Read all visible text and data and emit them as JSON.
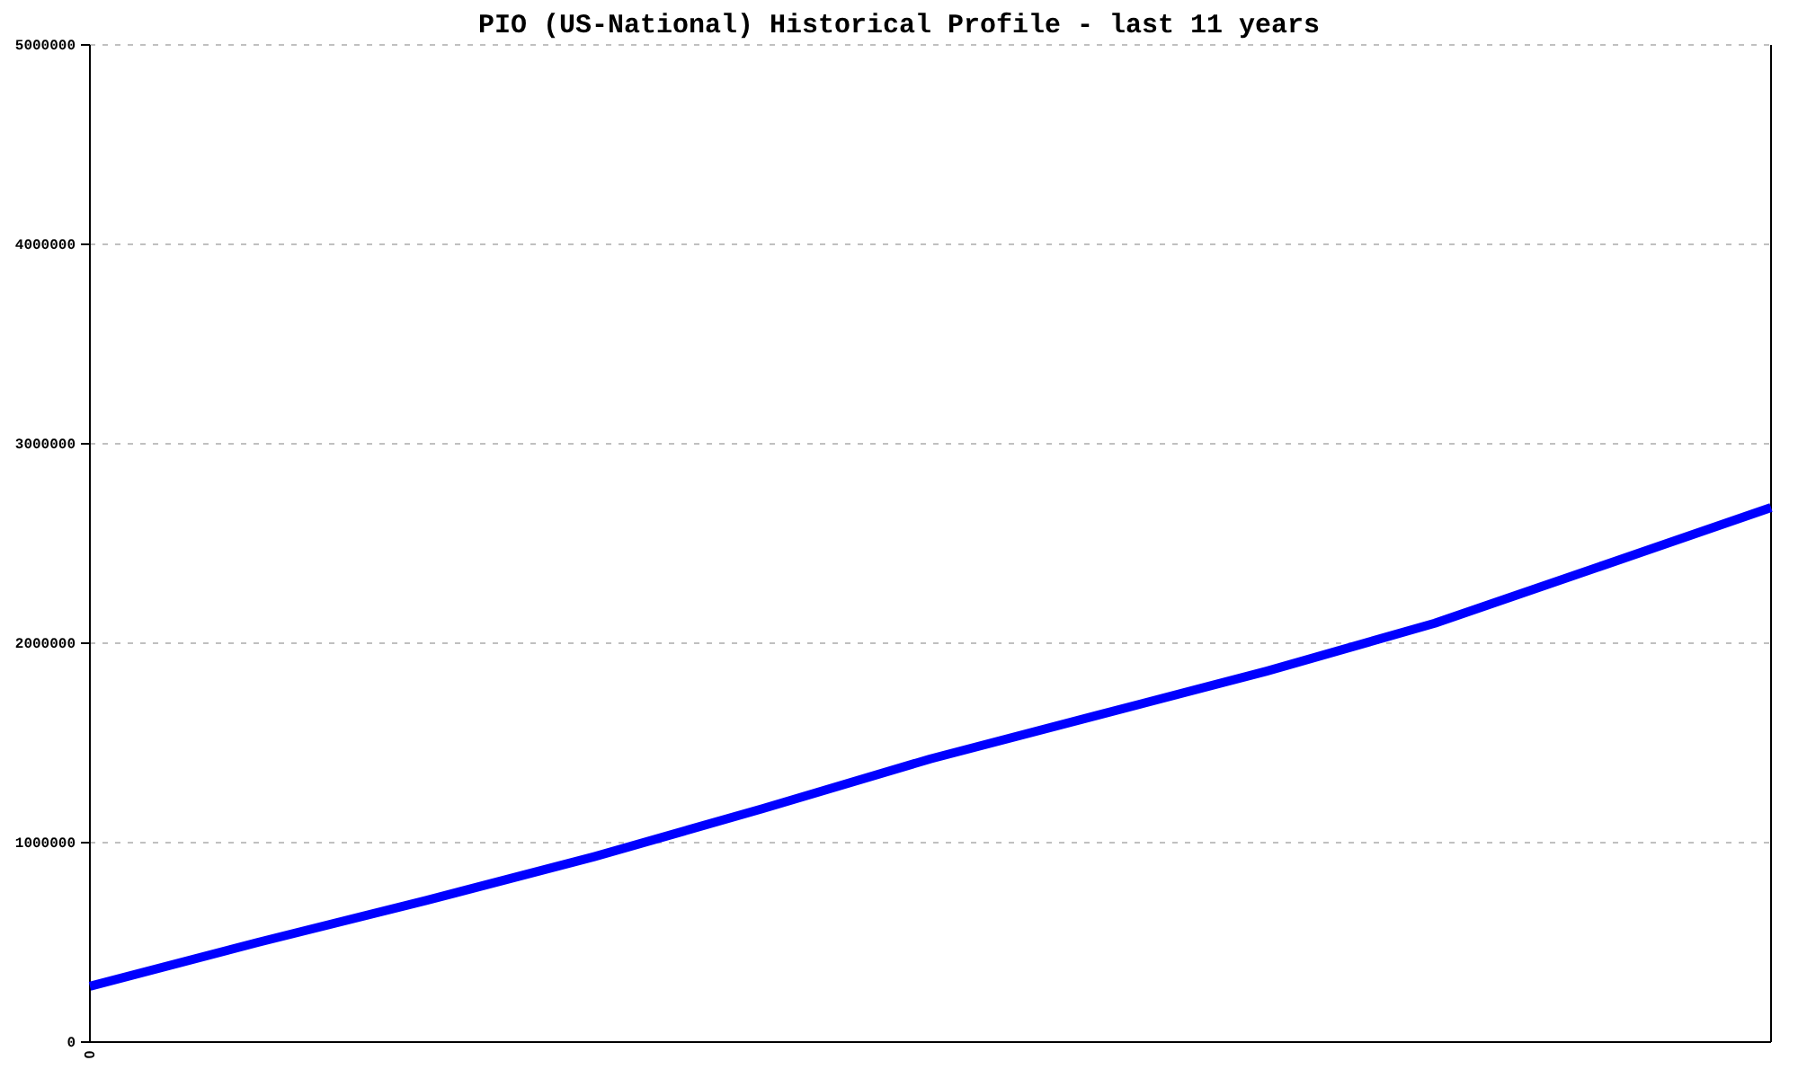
{
  "chart_data": {
    "type": "line",
    "title": "PIO (US-National) Historical Profile - last 11 years",
    "categories": [
      "0",
      null,
      null,
      null,
      null,
      null,
      null,
      null,
      null,
      null,
      null
    ],
    "series": [
      {
        "color": "#0000ff",
        "values": [
          280000,
          500000,
          710000,
          930000,
          1170000,
          1420000,
          1640000,
          1860000,
          2100000,
          2390000,
          2680000
        ]
      }
    ],
    "ylim": [
      0,
      5000000
    ],
    "yticks": [
      0,
      1000000,
      2000000,
      3000000,
      4000000,
      5000000
    ],
    "grid": "y",
    "marker": "none",
    "line_style": "solid"
  }
}
